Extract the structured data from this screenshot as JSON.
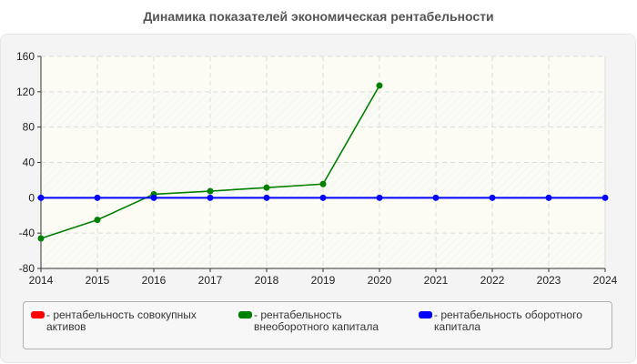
{
  "title": "Динамика показателей экономическая рентабельности",
  "chart_data": {
    "type": "line",
    "title": "Динамика показателей экономическая рентабельности",
    "xlabel": "",
    "ylabel": "",
    "x": [
      2014,
      2015,
      2016,
      2017,
      2018,
      2019,
      2020,
      2021,
      2022,
      2023,
      2024
    ],
    "ylim": [
      -80,
      160
    ],
    "yticks": [
      160,
      120,
      80,
      40,
      0,
      -40,
      -80
    ],
    "grid": true,
    "legend_position": "bottom",
    "series": [
      {
        "name": "рентабельность совокупных активов",
        "color": "#ff0000",
        "values": []
      },
      {
        "name": "рентабельность внеоборотного капитала",
        "color": "#008000",
        "values": [
          -46,
          -25,
          4,
          7.5,
          11.5,
          15.5,
          127,
          null,
          null,
          null,
          null
        ]
      },
      {
        "name": "рентабельность оборотного капитала",
        "color": "#0000ff",
        "values": [
          0,
          0,
          0,
          0,
          0,
          0,
          0,
          0,
          0,
          0,
          0
        ]
      }
    ]
  },
  "axis": {
    "y_labels": [
      "160",
      "120",
      "80",
      "40",
      "0",
      "-40",
      "-80"
    ],
    "x_labels": [
      "2014",
      "2015",
      "2016",
      "2017",
      "2018",
      "2019",
      "2020",
      "2021",
      "2022",
      "2023",
      "2024"
    ]
  },
  "legend": [
    {
      "label": "- рентабельность совокупных активов",
      "color": "#ff0000"
    },
    {
      "label": "- рентабельность внеоборотного капитала",
      "color": "#008000"
    },
    {
      "label": "- рентабельность оборотного капитала",
      "color": "#0000ff"
    }
  ]
}
